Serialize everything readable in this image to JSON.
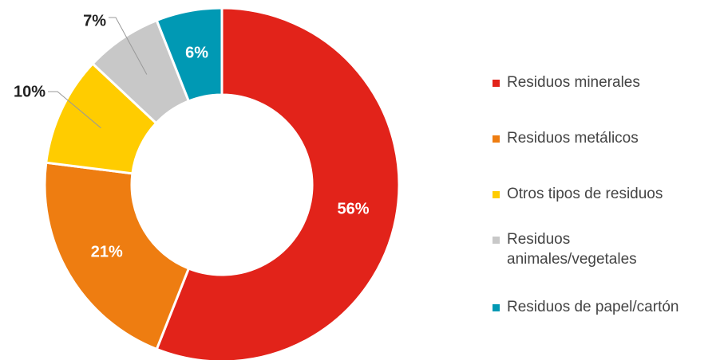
{
  "chart_data": {
    "type": "donut",
    "categories": [
      "Residuos minerales",
      "Residuos metálicos",
      "Otros tipos de residuos",
      "Residuos animales/vegetales",
      "Residuos de papel/cartón"
    ],
    "values": [
      56,
      21,
      10,
      7,
      6
    ],
    "value_labels": [
      "56%",
      "21%",
      "10%",
      "7%",
      "6%"
    ],
    "colors": [
      "#e2231a",
      "#ee7d11",
      "#ffcc00",
      "#c8c8c8",
      "#0099b4"
    ],
    "legend": "right"
  }
}
